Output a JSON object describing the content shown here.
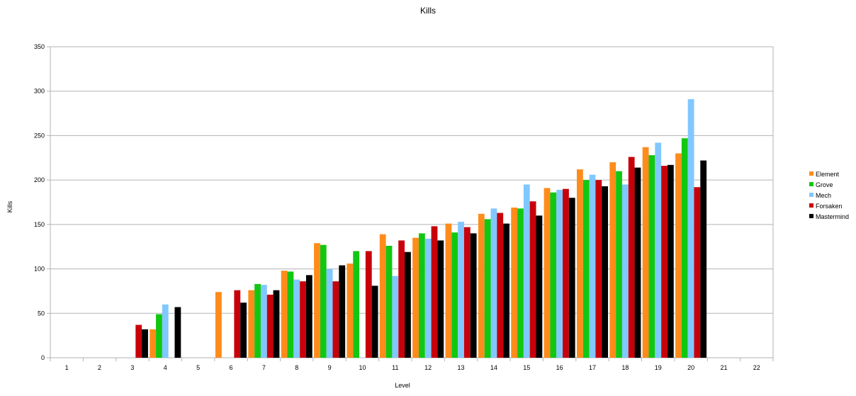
{
  "chart_data": {
    "type": "bar",
    "title": "Kills",
    "xlabel": "Level",
    "ylabel": "Kills",
    "ylim": [
      0,
      350
    ],
    "yticks": [
      0,
      50,
      100,
      150,
      200,
      250,
      300,
      350
    ],
    "grid": true,
    "legend_position": "right",
    "categories": [
      "1",
      "2",
      "3",
      "4",
      "5",
      "6",
      "7",
      "8",
      "9",
      "10",
      "11",
      "12",
      "13",
      "14",
      "15",
      "16",
      "17",
      "18",
      "19",
      "20",
      "21",
      "22"
    ],
    "series": [
      {
        "name": "Element",
        "color": "#ff8c1a",
        "values": [
          null,
          null,
          null,
          32,
          null,
          74,
          76,
          98,
          129,
          106,
          139,
          135,
          151,
          162,
          169,
          191,
          212,
          220,
          237,
          230,
          null,
          null
        ]
      },
      {
        "name": "Grove",
        "color": "#12c712",
        "values": [
          null,
          null,
          null,
          49,
          null,
          null,
          83,
          97,
          127,
          120,
          126,
          140,
          141,
          156,
          168,
          186,
          200,
          210,
          228,
          247,
          null,
          null
        ]
      },
      {
        "name": "Mech",
        "color": "#80c8ff",
        "values": [
          null,
          null,
          null,
          60,
          null,
          null,
          82,
          88,
          100,
          null,
          92,
          134,
          153,
          168,
          195,
          189,
          206,
          195,
          242,
          291,
          null,
          null
        ]
      },
      {
        "name": "Forsaken",
        "color": "#c8000a",
        "values": [
          null,
          null,
          37,
          null,
          null,
          76,
          71,
          86,
          86,
          120,
          132,
          148,
          147,
          163,
          176,
          190,
          200,
          226,
          216,
          192,
          null,
          null
        ]
      },
      {
        "name": "Mastermind",
        "color": "#000000",
        "values": [
          null,
          null,
          32,
          57,
          null,
          62,
          76,
          93,
          104,
          81,
          119,
          132,
          140,
          151,
          160,
          180,
          193,
          214,
          217,
          222,
          null,
          null
        ]
      }
    ]
  }
}
